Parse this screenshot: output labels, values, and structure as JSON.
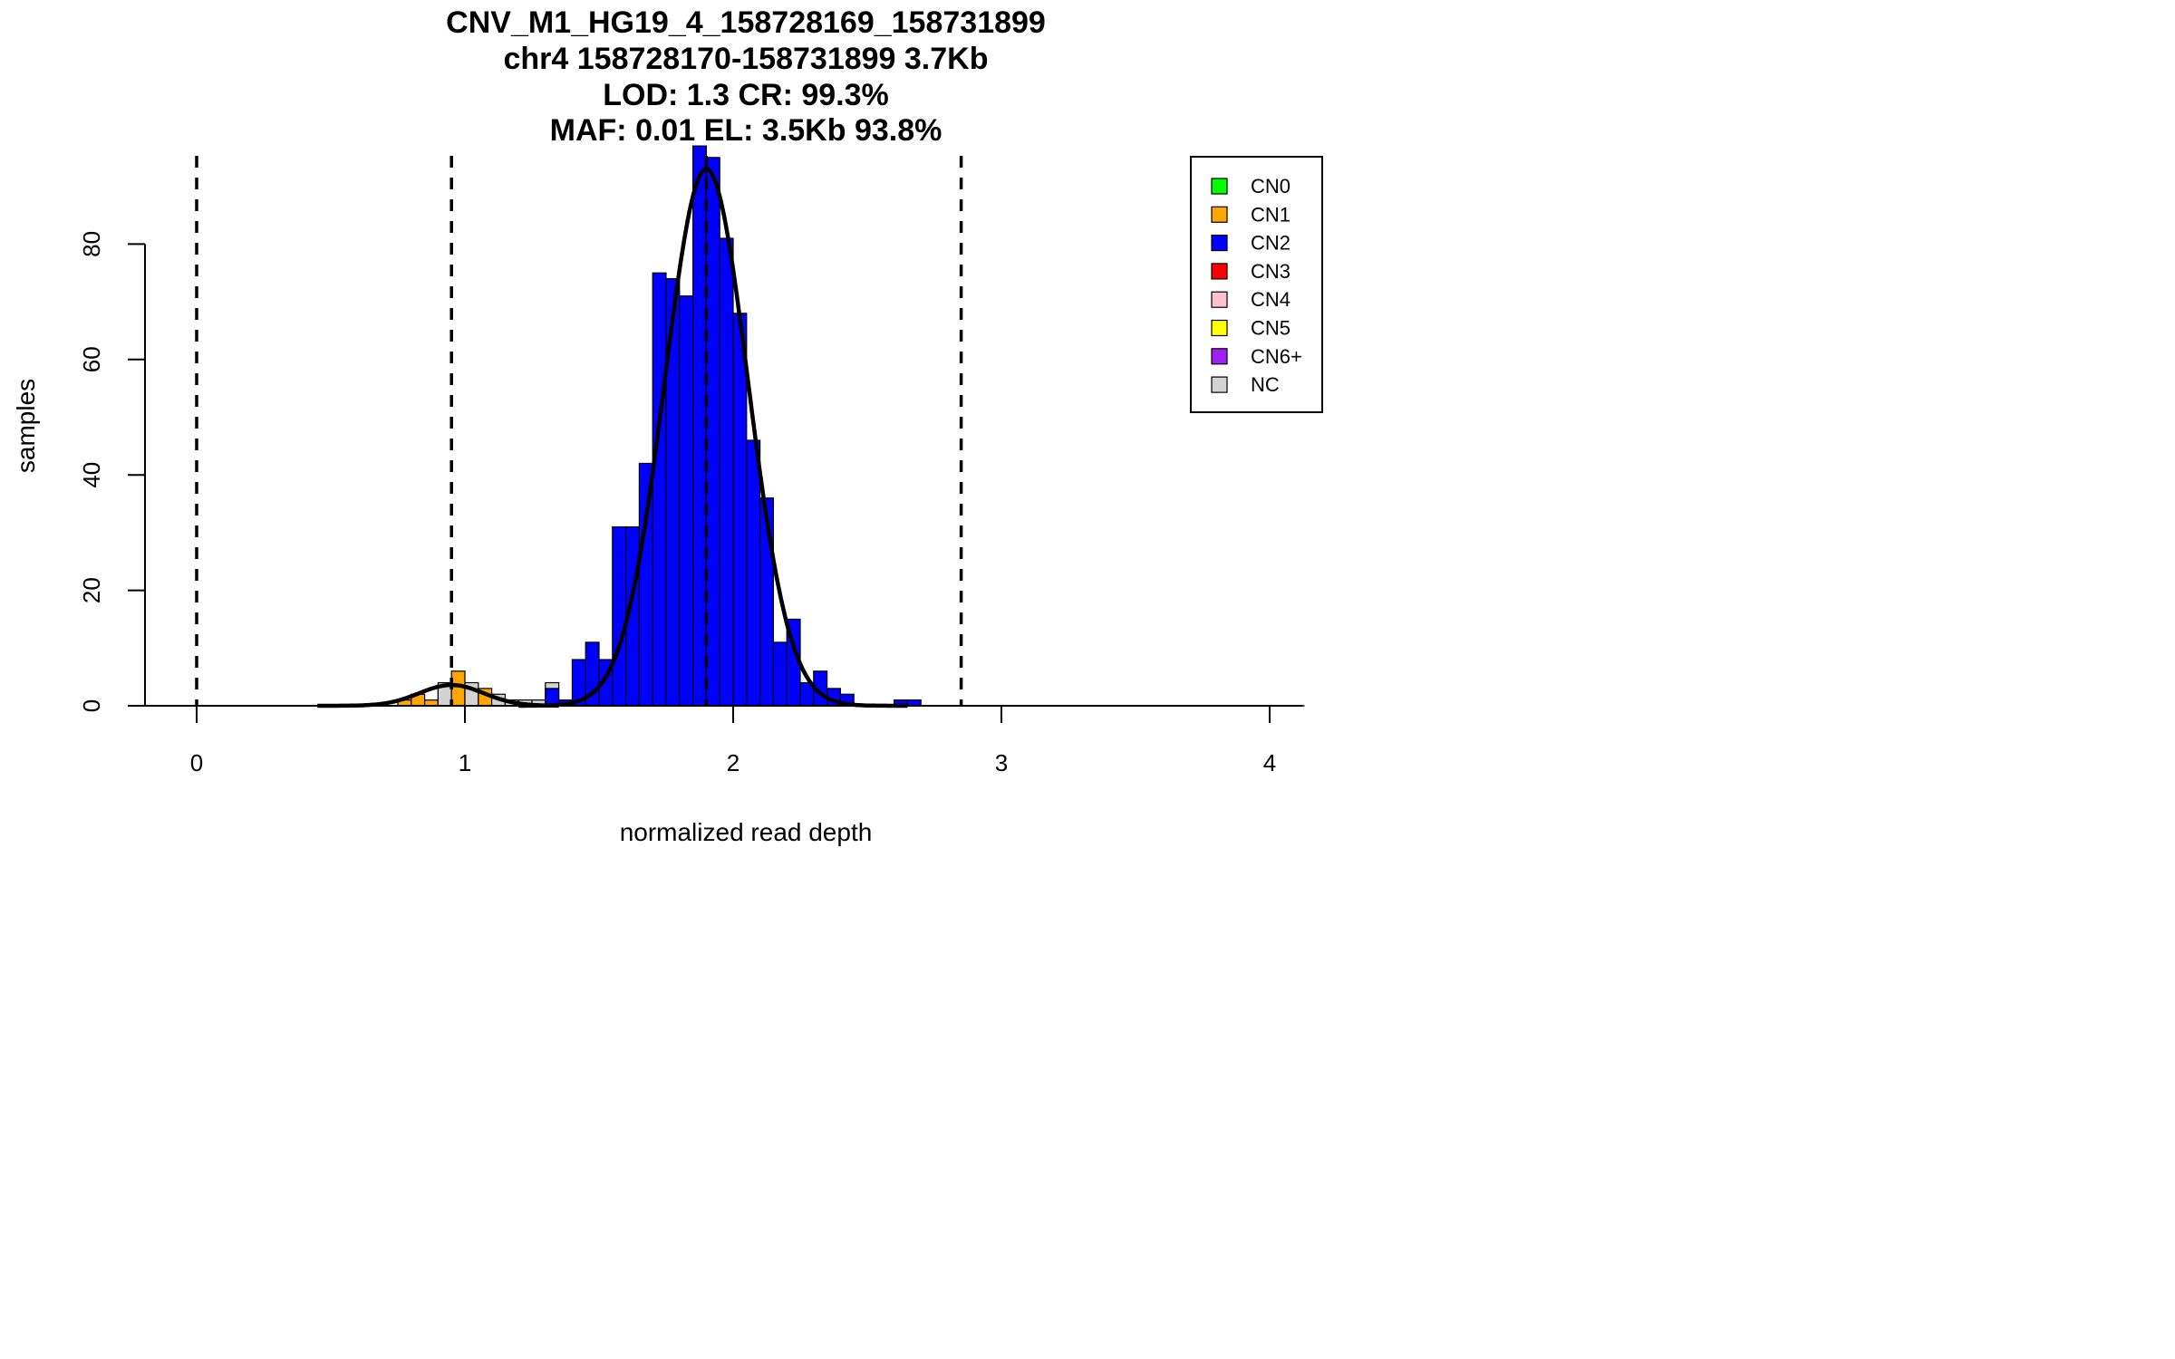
{
  "chart_data": {
    "type": "bar",
    "title_lines": [
      "CNV_M1_HG19_4_158728169_158731899",
      "chr4 158728170-158731899 3.7Kb",
      "LOD: 1.3 CR: 99.3%",
      "MAF: 0.01 EL: 3.5Kb 93.8%"
    ],
    "xlabel": "normalized read depth",
    "ylabel": "samples",
    "xlim": [
      -0.2,
      4.13
    ],
    "ylim": [
      0,
      97
    ],
    "x_ticks": [
      "0",
      "1",
      "2",
      "3",
      "4"
    ],
    "y_ticks": [
      "0",
      "20",
      "40",
      "60",
      "80"
    ],
    "bin_width": 0.05,
    "colors": {
      "CN0": "#00ff00",
      "CN1": "#ffa500",
      "CN2": "#0000ff",
      "CN3": "#ff0000",
      "CN4": "#ffc0cb",
      "CN5": "#ffff00",
      "CN6+": "#a020f0",
      "NC": "#d3d3d3"
    },
    "legend": {
      "position": "top-right",
      "entries": [
        {
          "label": "CN0",
          "color": "#00ff00"
        },
        {
          "label": "CN1",
          "color": "#ffa500"
        },
        {
          "label": "CN2",
          "color": "#0000ff"
        },
        {
          "label": "CN3",
          "color": "#ff0000"
        },
        {
          "label": "CN4",
          "color": "#ffc0cb"
        },
        {
          "label": "CN5",
          "color": "#ffff00"
        },
        {
          "label": "CN6+",
          "color": "#a020f0"
        },
        {
          "label": "NC",
          "color": "#d3d3d3"
        }
      ]
    },
    "bars": [
      {
        "x": 0.775,
        "y": 1,
        "cn": "CN1"
      },
      {
        "x": 0.825,
        "y": 2,
        "cn": "CN1"
      },
      {
        "x": 0.875,
        "y": 1,
        "cn": "CN1"
      },
      {
        "x": 0.925,
        "y": 3,
        "cn": "CN1"
      },
      {
        "x": 0.925,
        "y": 4,
        "cn": "NC"
      },
      {
        "x": 0.975,
        "y": 6,
        "cn": "CN1"
      },
      {
        "x": 1.025,
        "y": 3,
        "cn": "CN1"
      },
      {
        "x": 1.025,
        "y": 4,
        "cn": "NC"
      },
      {
        "x": 1.075,
        "y": 3,
        "cn": "CN1"
      },
      {
        "x": 1.125,
        "y": 2,
        "cn": "NC"
      },
      {
        "x": 1.175,
        "y": 1,
        "cn": "NC"
      },
      {
        "x": 1.225,
        "y": 1,
        "cn": "NC"
      },
      {
        "x": 1.275,
        "y": 1,
        "cn": "NC"
      },
      {
        "x": 1.325,
        "y": 4,
        "cn": "NC"
      },
      {
        "x": 1.325,
        "y": 3,
        "cn": "CN2"
      },
      {
        "x": 1.375,
        "y": 1,
        "cn": "CN2"
      },
      {
        "x": 1.425,
        "y": 8,
        "cn": "CN2"
      },
      {
        "x": 1.475,
        "y": 11,
        "cn": "CN2"
      },
      {
        "x": 1.525,
        "y": 8,
        "cn": "CN2"
      },
      {
        "x": 1.575,
        "y": 31,
        "cn": "CN2"
      },
      {
        "x": 1.625,
        "y": 31,
        "cn": "CN2"
      },
      {
        "x": 1.675,
        "y": 42,
        "cn": "CN2"
      },
      {
        "x": 1.725,
        "y": 75,
        "cn": "CN2"
      },
      {
        "x": 1.775,
        "y": 74,
        "cn": "CN2"
      },
      {
        "x": 1.825,
        "y": 71,
        "cn": "CN2"
      },
      {
        "x": 1.875,
        "y": 97,
        "cn": "CN2"
      },
      {
        "x": 1.925,
        "y": 95,
        "cn": "CN2"
      },
      {
        "x": 1.975,
        "y": 81,
        "cn": "CN2"
      },
      {
        "x": 2.025,
        "y": 68,
        "cn": "CN2"
      },
      {
        "x": 2.075,
        "y": 46,
        "cn": "CN2"
      },
      {
        "x": 2.125,
        "y": 36,
        "cn": "CN2"
      },
      {
        "x": 2.175,
        "y": 11,
        "cn": "CN2"
      },
      {
        "x": 2.225,
        "y": 15,
        "cn": "CN2"
      },
      {
        "x": 2.275,
        "y": 4,
        "cn": "CN2"
      },
      {
        "x": 2.325,
        "y": 6,
        "cn": "CN2"
      },
      {
        "x": 2.375,
        "y": 3,
        "cn": "CN2"
      },
      {
        "x": 2.425,
        "y": 2,
        "cn": "CN2"
      },
      {
        "x": 2.625,
        "y": 1,
        "cn": "CN2"
      },
      {
        "x": 2.675,
        "y": 1,
        "cn": "CN2"
      }
    ],
    "fit_curves": [
      {
        "name": "CN1",
        "mean": 0.95,
        "sd": 0.12,
        "peak": 3.6,
        "x_range": [
          0.45,
          1.35
        ]
      },
      {
        "name": "CN2",
        "mean": 1.9,
        "sd": 0.155,
        "peak": 93.0,
        "x_range": [
          1.2,
          2.65
        ]
      }
    ],
    "baseline_segments": [
      [
        -0.2,
        0.22
      ],
      [
        3.45,
        4.13
      ]
    ],
    "dashed_vlines": [
      0,
      0.95,
      1.9,
      2.85
    ]
  }
}
